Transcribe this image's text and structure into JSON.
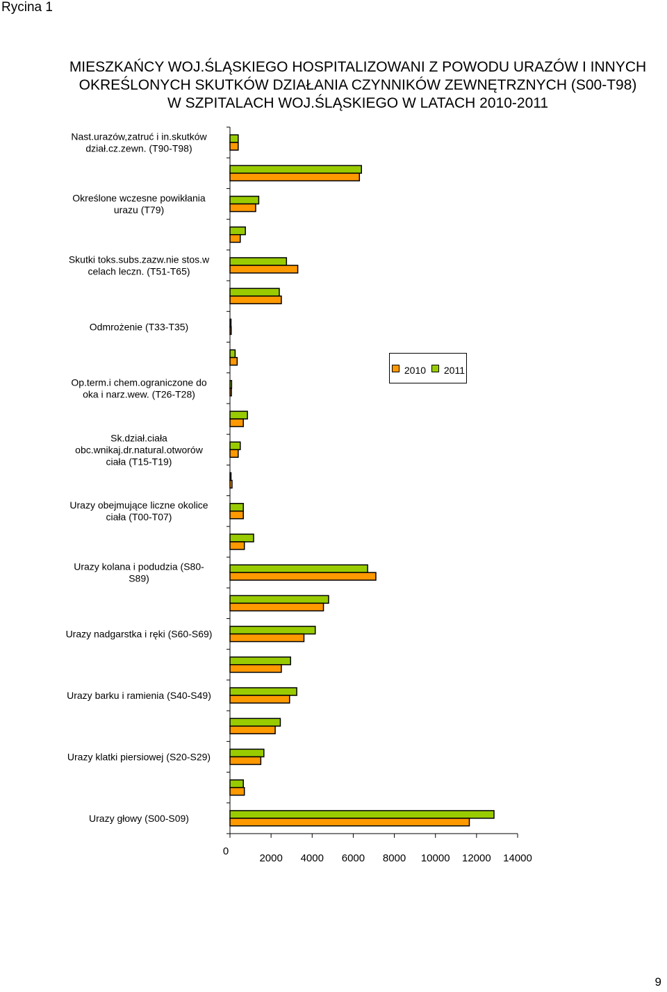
{
  "header": {
    "corner_label": "Rycina 1"
  },
  "page_number": "9",
  "chart_data": {
    "type": "bar",
    "orientation": "horizontal",
    "title": [
      "MIESZKAŃCY WOJ.ŚLĄSKIEGO HOSPITALIZOWANI Z POWODU URAZÓW I INNYCH",
      "OKREŚLONYCH SKUTKÓW DZIAŁANIA CZYNNIKÓW ZEWNĘTRZNYCH (S00-T98)",
      "W SZPITALACH WOJ.ŚLĄSKIEGO W LATACH 2010-2011"
    ],
    "categories": [
      "Urazy głowy (S00-S09)",
      "",
      "Urazy klatki piersiowej (S20-S29)",
      "",
      "Urazy barku i ramienia (S40-S49)",
      "",
      "Urazy nadgarstka i ręki (S60-S69)",
      "",
      "Urazy kolana i podudzia (S80-S89)",
      "",
      "Urazy obejmujące liczne okolice ciała (T00-T07)",
      "",
      "Sk.dział.ciała obc.wnikaj.dr.natural.otworów ciała (T15-T19)",
      "",
      "Op.term.i chem.ograniczone do oka i narz.wew. (T26-T28)",
      "",
      "Odmrożenie (T33-T35)",
      "",
      "Skutki toks.subs.zazw.nie stos.w celach leczn. (T51-T65)",
      "",
      "Określone wczesne powikłania urazu (T79)",
      "",
      "Nast.urazów,zatruć i in.skutków dział.cz.zewn. (T90-T98)"
    ],
    "series": [
      {
        "name": "2010",
        "color": "#FF9900",
        "values": [
          11650,
          700,
          1500,
          2200,
          2900,
          2500,
          3600,
          4550,
          7100,
          700,
          650,
          100,
          400,
          650,
          70,
          350,
          60,
          2500,
          3300,
          500,
          1250,
          6300,
          400
        ]
      },
      {
        "name": "2011",
        "color": "#99CC00",
        "values": [
          12850,
          650,
          1650,
          2450,
          3250,
          2950,
          4150,
          4800,
          6700,
          1150,
          650,
          50,
          500,
          850,
          80,
          250,
          50,
          2400,
          2750,
          750,
          1400,
          6400,
          400
        ]
      }
    ],
    "xaxis": {
      "min": 0,
      "max": 14000,
      "ticks": [
        "0",
        "2000",
        "4000",
        "6000",
        "8000",
        "10000",
        "12000",
        "14000"
      ]
    },
    "category_label_lines": [
      [
        "Urazy głowy (S00-S09)"
      ],
      [],
      [
        "Urazy klatki piersiowej (S20-S29)"
      ],
      [],
      [
        "Urazy barku i ramienia (S40-S49)"
      ],
      [],
      [
        "Urazy nadgarstka i ręki (S60-S69)"
      ],
      [],
      [
        "Urazy kolana i podudzia (S80-",
        "S89)"
      ],
      [],
      [
        "Urazy obejmujące liczne okolice",
        "ciała (T00-T07)"
      ],
      [],
      [
        "Sk.dział.ciała",
        "obc.wnikaj.dr.natural.otworów",
        "ciała (T15-T19)"
      ],
      [],
      [
        "Op.term.i chem.ograniczone do",
        "oka i narz.wew. (T26-T28)"
      ],
      [],
      [
        "Odmrożenie (T33-T35)"
      ],
      [],
      [
        "Skutki toks.subs.zazw.nie stos.w",
        "celach leczn. (T51-T65)"
      ],
      [],
      [
        "Określone wczesne powikłania",
        "urazu (T79)"
      ],
      [],
      [
        "Nast.urazów,zatruć i in.skutków",
        "dział.cz.zewn. (T90-T98)"
      ]
    ],
    "legend": {
      "position": "right",
      "entries": [
        "2010",
        "2011"
      ]
    },
    "grid": false
  }
}
